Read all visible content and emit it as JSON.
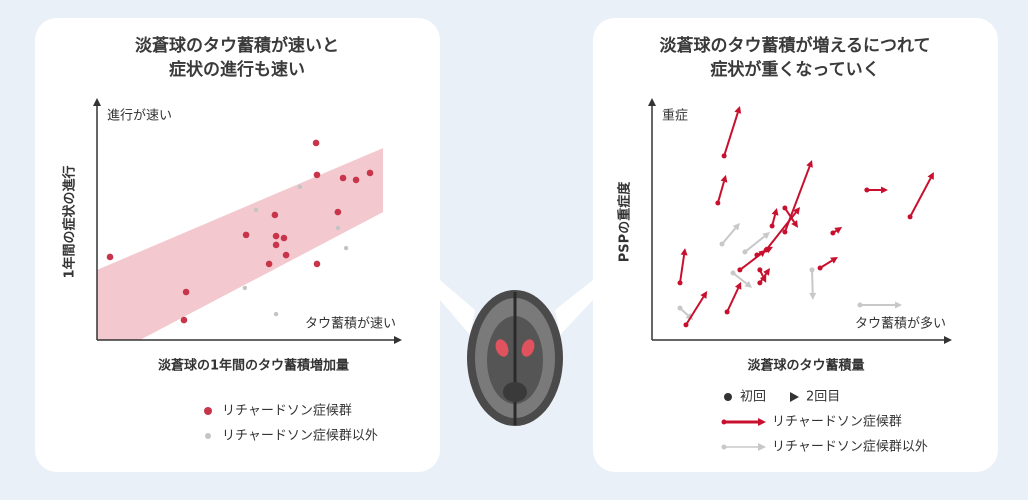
{
  "chart_data": [
    {
      "type": "scatter",
      "title": [
        "淡蒼球のタウ蓄積が速いと",
        "症状の進行も速い"
      ],
      "x_label": "淡蒼球の1年間のタウ蓄積増加量",
      "y_label": "1年間の症状の進行",
      "annotations": [
        "進行が速い",
        "タウ蓄積が速い"
      ],
      "xlim": [
        0,
        100
      ],
      "ylim": [
        0,
        100
      ],
      "band": {
        "color": "#f3c9cf",
        "x": [
          0,
          94.4
        ],
        "lower": [
          -9.4,
          53.3
        ],
        "upper": [
          29.2,
          80
        ]
      },
      "series": [
        {
          "name": "リチャードソン症候群",
          "color": "#c8344a",
          "x": [
            4.3,
            29.4,
            28.7,
            49.2,
            58.7,
            59.1,
            59.1,
            61.7,
            56.8,
            62.4,
            72.6,
            72.3,
            72.6,
            79.5,
            81.2,
            85.5,
            90.1
          ],
          "y": [
            34.6,
            20,
            8.3,
            43.8,
            52.1,
            43.3,
            39.6,
            42.5,
            31.7,
            35.4,
            31.7,
            82.1,
            68.8,
            53.3,
            67.5,
            66.7,
            69.6
          ]
        },
        {
          "name": "リチャードソン症候群以外",
          "color": "#c4c4c4",
          "x": [
            67,
            52.5,
            48.8,
            59.1,
            79.5,
            82.2
          ],
          "y": [
            63.8,
            54.2,
            21.7,
            10.8,
            46.7,
            38.3
          ]
        }
      ]
    },
    {
      "type": "arrow",
      "title": [
        "淡蒼球のタウ蓄積が増えるにつれて",
        "症状が重くなっていく"
      ],
      "x_label": "淡蒼球のタウ蓄積量",
      "y_label": "PSPの重症度",
      "annotations": [
        "重症",
        "タウ蓄積が多い"
      ],
      "marker_legend": [
        "初回",
        "2回目"
      ],
      "xlim": [
        0,
        100
      ],
      "ylim": [
        0,
        100
      ],
      "series": [
        {
          "name": "リチャードソン症候群",
          "color": "#c8102e",
          "x_start": [
            11.4,
            9.4,
            22.1,
            24.2,
            25.2,
            29.5,
            35.2,
            36.2,
            40.3,
            44.6,
            38.3,
            44.6,
            56.4,
            60.7,
            72.1,
            86.6,
            36.2
          ],
          "y_start": [
            6.3,
            23.8,
            57.1,
            76.7,
            11.7,
            29.2,
            35.4,
            29.2,
            47.5,
            45,
            37.5,
            55,
            30,
            44.6,
            62.5,
            51.3,
            23.8
          ],
          "x_end": [
            18.5,
            11.1,
            24.8,
            29.5,
            29.9,
            38.3,
            40.6,
            38.3,
            41.9,
            53.7,
            49.7,
            49,
            62.4,
            63.8,
            79.2,
            94.6,
            39.6
          ],
          "y_end": [
            20.4,
            38.3,
            68.8,
            97.5,
            24.2,
            37.5,
            38.8,
            23.8,
            55,
            75,
            55.4,
            46.7,
            34.6,
            47.1,
            62.5,
            70,
            30
          ]
        },
        {
          "name": "リチャードソン症候群以外",
          "color": "#c8c8c8",
          "x_start": [
            9.4,
            23.5,
            27.2,
            53.7,
            69.8,
            31.2
          ],
          "y_start": [
            13.3,
            40,
            27.9,
            29.2,
            14.6,
            36.7
          ],
          "x_end": [
            13.8,
            29.5,
            33.6,
            54,
            83.9,
            39.6
          ],
          "y_end": [
            8.3,
            48.8,
            21.7,
            16.7,
            14.6,
            45
          ]
        }
      ]
    }
  ]
}
